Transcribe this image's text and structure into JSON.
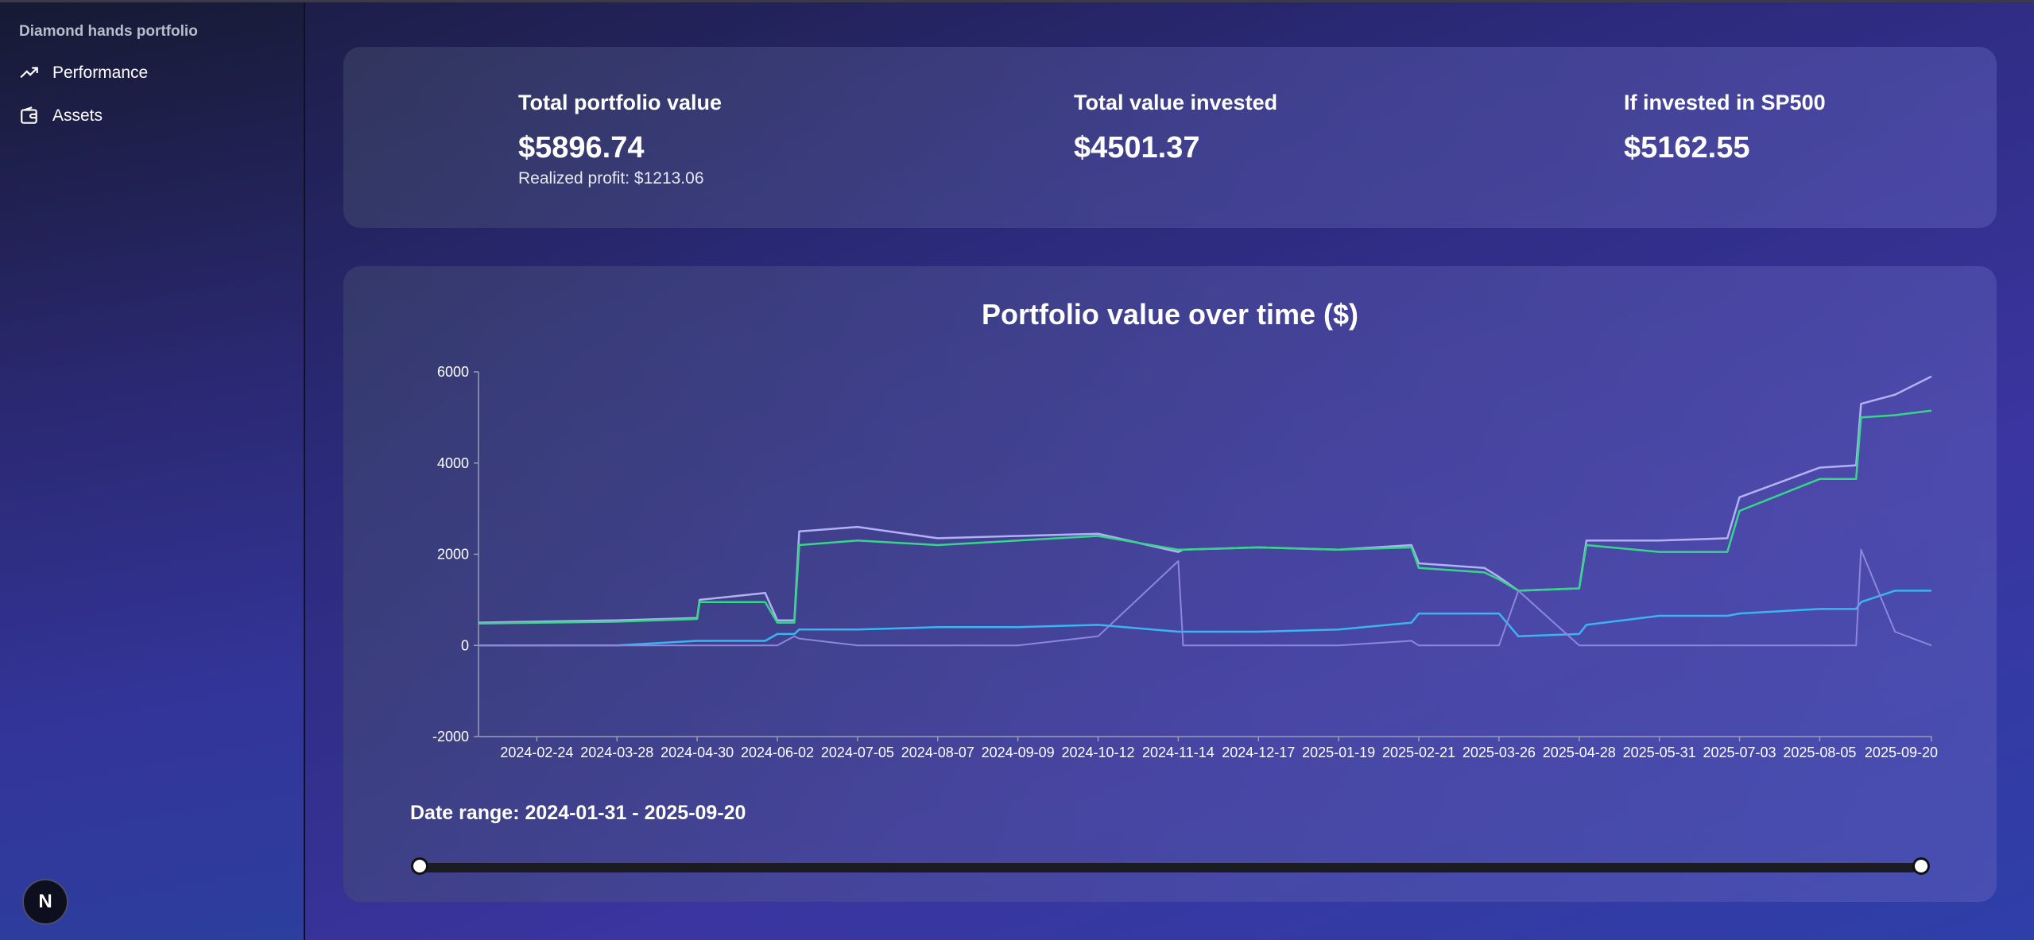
{
  "sidebar": {
    "brand": "Diamond hands portfolio",
    "items": [
      {
        "label": "Performance",
        "icon": "trending-up-icon"
      },
      {
        "label": "Assets",
        "icon": "wallet-icon"
      }
    ],
    "badge": "N"
  },
  "stats": {
    "total": {
      "title": "Total portfolio value",
      "value": "$5896.74",
      "sub": "Realized profit: $1213.06"
    },
    "invested": {
      "title": "Total value invested",
      "value": "$4501.37"
    },
    "sp500": {
      "title": "If invested in SP500",
      "value": "$5162.55"
    }
  },
  "chart": {
    "date_range": "Date range: 2024-01-31 - 2025-09-20"
  },
  "colors": {
    "portfolio": "#b3b0f5",
    "sp500": "#36d68a",
    "invested": "#3bb4f2",
    "realized": "#8c86dc"
  },
  "chart_data": {
    "type": "line",
    "title": "Portfolio value over time ($)",
    "ylim": [
      -2000,
      6000
    ],
    "yticks": [
      "6000",
      "4000",
      "2000",
      "0",
      "-2000"
    ],
    "ytick_values": [
      6000,
      4000,
      2000,
      0,
      -2000
    ],
    "xlim": [
      "2024-01-31",
      "2025-09-20"
    ],
    "xtick_labels": [
      "2024-02-24",
      "2024-03-28",
      "2024-04-30",
      "2024-06-02",
      "2024-07-05",
      "2024-08-07",
      "2024-09-09",
      "2024-10-12",
      "2024-11-14",
      "2024-12-17",
      "2025-01-19",
      "2025-02-21",
      "2025-03-26",
      "2025-04-28",
      "2025-05-31",
      "2025-07-03",
      "2025-08-05",
      "2025-09-20"
    ],
    "x": [
      "2024-01-31",
      "2024-03-28",
      "2024-04-30",
      "2024-05-01",
      "2024-05-28",
      "2024-06-02",
      "2024-06-09",
      "2024-06-11",
      "2024-07-05",
      "2024-08-07",
      "2024-09-09",
      "2024-10-12",
      "2024-11-14",
      "2024-11-16",
      "2024-12-17",
      "2025-01-19",
      "2025-02-18",
      "2025-02-21",
      "2025-03-20",
      "2025-03-26",
      "2025-04-03",
      "2025-04-28",
      "2025-05-01",
      "2025-05-31",
      "2025-06-28",
      "2025-07-03",
      "2025-08-05",
      "2025-08-20",
      "2025-08-22",
      "2025-09-05",
      "2025-09-20"
    ],
    "series": [
      {
        "values": [
          500,
          550,
          600,
          1000,
          1150,
          550,
          550,
          2500,
          2600,
          2350,
          2400,
          2450,
          2050,
          2100,
          2150,
          2100,
          2200,
          1800,
          1700,
          1500,
          1200,
          1250,
          2300,
          2300,
          2350,
          3250,
          3900,
          3950,
          5300,
          5500,
          5900
        ]
      },
      {
        "values": [
          480,
          520,
          580,
          950,
          950,
          500,
          500,
          2200,
          2300,
          2200,
          2300,
          2400,
          2100,
          2100,
          2150,
          2100,
          2150,
          1700,
          1600,
          1450,
          1200,
          1250,
          2200,
          2050,
          2050,
          2950,
          3650,
          3650,
          5000,
          5050,
          5150
        ]
      },
      {
        "values": [
          0,
          0,
          100,
          100,
          100,
          250,
          250,
          350,
          350,
          400,
          400,
          450,
          300,
          300,
          300,
          350,
          500,
          700,
          700,
          700,
          200,
          250,
          450,
          650,
          650,
          700,
          800,
          800,
          950,
          1200,
          1200
        ]
      },
      {
        "values": [
          0,
          0,
          0,
          0,
          0,
          0,
          200,
          150,
          0,
          0,
          0,
          200,
          1850,
          0,
          0,
          0,
          100,
          0,
          0,
          0,
          1200,
          0,
          0,
          0,
          0,
          0,
          0,
          0,
          2100,
          300,
          0
        ]
      }
    ]
  }
}
